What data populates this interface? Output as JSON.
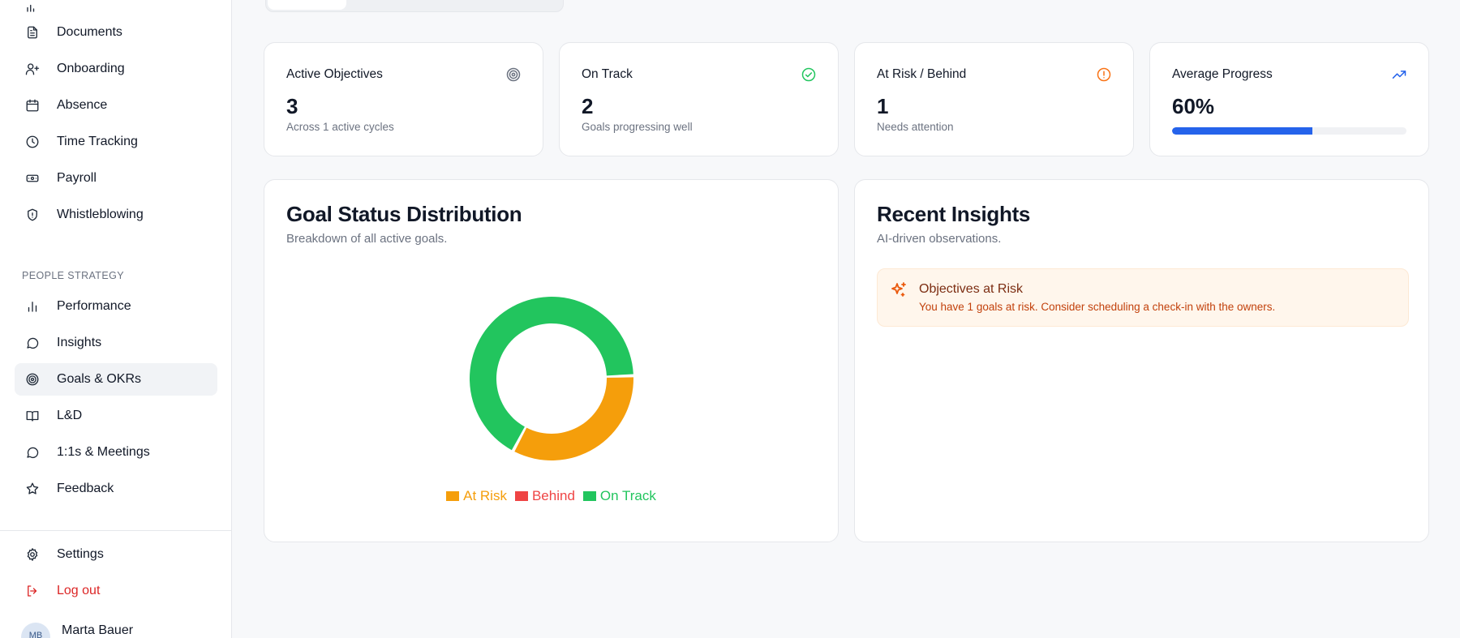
{
  "sidebar": {
    "items_top": [
      {
        "label": "Documents",
        "icon": "document-icon"
      },
      {
        "label": "Onboarding",
        "icon": "user-plus-icon"
      },
      {
        "label": "Absence",
        "icon": "calendar-icon"
      },
      {
        "label": "Time Tracking",
        "icon": "clock-icon"
      },
      {
        "label": "Payroll",
        "icon": "banknote-icon"
      },
      {
        "label": "Whistleblowing",
        "icon": "shield-icon"
      }
    ],
    "section_label": "PEOPLE STRATEGY",
    "items_strategy": [
      {
        "label": "Performance",
        "icon": "bar-chart-icon"
      },
      {
        "label": "Insights",
        "icon": "message-circle-icon"
      },
      {
        "label": "Goals & OKRs",
        "icon": "target-icon"
      },
      {
        "label": "L&D",
        "icon": "book-open-icon"
      },
      {
        "label": "1:1s & Meetings",
        "icon": "message-circle-icon"
      },
      {
        "label": "Feedback",
        "icon": "star-icon"
      }
    ],
    "settings_label": "Settings",
    "logout_label": "Log out",
    "user": {
      "initials": "MB",
      "name": "Marta Bauer"
    }
  },
  "stats": [
    {
      "title": "Active Objectives",
      "value": "3",
      "sub": "Across 1 active cycles",
      "icon": "target-icon",
      "color": "#6b7280"
    },
    {
      "title": "On Track",
      "value": "2",
      "sub": "Goals progressing well",
      "icon": "check-circle-icon",
      "color": "#22c55e"
    },
    {
      "title": "At Risk / Behind",
      "value": "1",
      "sub": "Needs attention",
      "icon": "alert-circle-icon",
      "color": "#f97316"
    },
    {
      "title": "Average Progress",
      "value": "60%",
      "progress": 0.6,
      "icon": "trending-up-icon",
      "color": "#2563eb"
    }
  ],
  "distribution": {
    "title": "Goal Status Distribution",
    "subtitle": "Breakdown of all active goals."
  },
  "chart_data": {
    "type": "pie",
    "donut": true,
    "categories": [
      "At Risk",
      "Behind",
      "On Track"
    ],
    "values": [
      1,
      0,
      2
    ],
    "colors": [
      "#f59e0b",
      "#ef4444",
      "#22c55e"
    ],
    "title": "",
    "legend": "bottom"
  },
  "insights": {
    "title": "Recent Insights",
    "subtitle": "AI-driven observations.",
    "items": [
      {
        "title": "Objectives at Risk",
        "text": "You have 1 goals at risk. Consider scheduling a check-in with the owners.",
        "icon": "sparkles-icon"
      }
    ]
  }
}
